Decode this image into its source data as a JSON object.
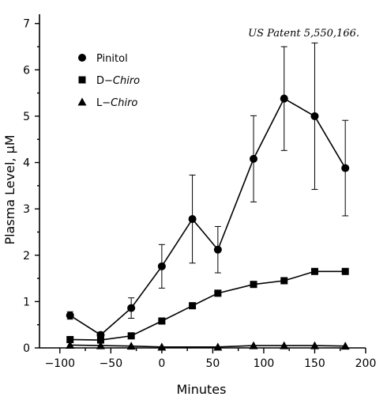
{
  "chart_data": {
    "type": "line",
    "title": "",
    "annotation": "US Patent 5,550,166.",
    "xlabel": "Minutes",
    "ylabel": "Plasma Level, µM",
    "xlim": [
      -120,
      200
    ],
    "ylim": [
      0,
      7.2
    ],
    "xticks": [
      -100,
      -50,
      0,
      50,
      100,
      150,
      200
    ],
    "xtick_labels": [
      "−100",
      "−50",
      "0",
      "50",
      "100",
      "150",
      "200"
    ],
    "yticks": [
      0,
      1,
      2,
      3,
      4,
      5,
      6,
      7
    ],
    "ytick_labels": [
      "0",
      "1",
      "2",
      "3",
      "4",
      "5",
      "6",
      "7"
    ],
    "grid": false,
    "legend_position": "top-left",
    "series": [
      {
        "name": "Pinitol",
        "legend_parts": [
          {
            "text": "Pinitol",
            "italic": false
          }
        ],
        "marker": "circle",
        "x": [
          -90,
          -60,
          -30,
          0,
          30,
          55,
          90,
          120,
          150,
          180
        ],
        "y": [
          0.7,
          0.28,
          0.86,
          1.76,
          2.78,
          2.12,
          4.08,
          5.38,
          5.0,
          3.88
        ],
        "err": [
          0.08,
          0.06,
          0.22,
          0.47,
          0.95,
          0.5,
          0.93,
          1.12,
          1.58,
          1.03
        ]
      },
      {
        "name": "D-Chiro",
        "legend_parts": [
          {
            "text": "D−",
            "italic": false
          },
          {
            "text": "Chiro",
            "italic": true
          }
        ],
        "marker": "square",
        "x": [
          -90,
          -60,
          -30,
          0,
          30,
          55,
          90,
          120,
          150,
          180
        ],
        "y": [
          0.18,
          0.17,
          0.26,
          0.58,
          0.91,
          1.18,
          1.37,
          1.45,
          1.65,
          1.65
        ]
      },
      {
        "name": "L-Chiro",
        "legend_parts": [
          {
            "text": "L−",
            "italic": false
          },
          {
            "text": "Chiro",
            "italic": true
          }
        ],
        "marker": "triangle",
        "x": [
          -90,
          -60,
          -30,
          0,
          55,
          90,
          120,
          150,
          180
        ],
        "y": [
          0.06,
          0.05,
          0.04,
          0.02,
          0.02,
          0.05,
          0.05,
          0.05,
          0.04
        ]
      }
    ]
  }
}
